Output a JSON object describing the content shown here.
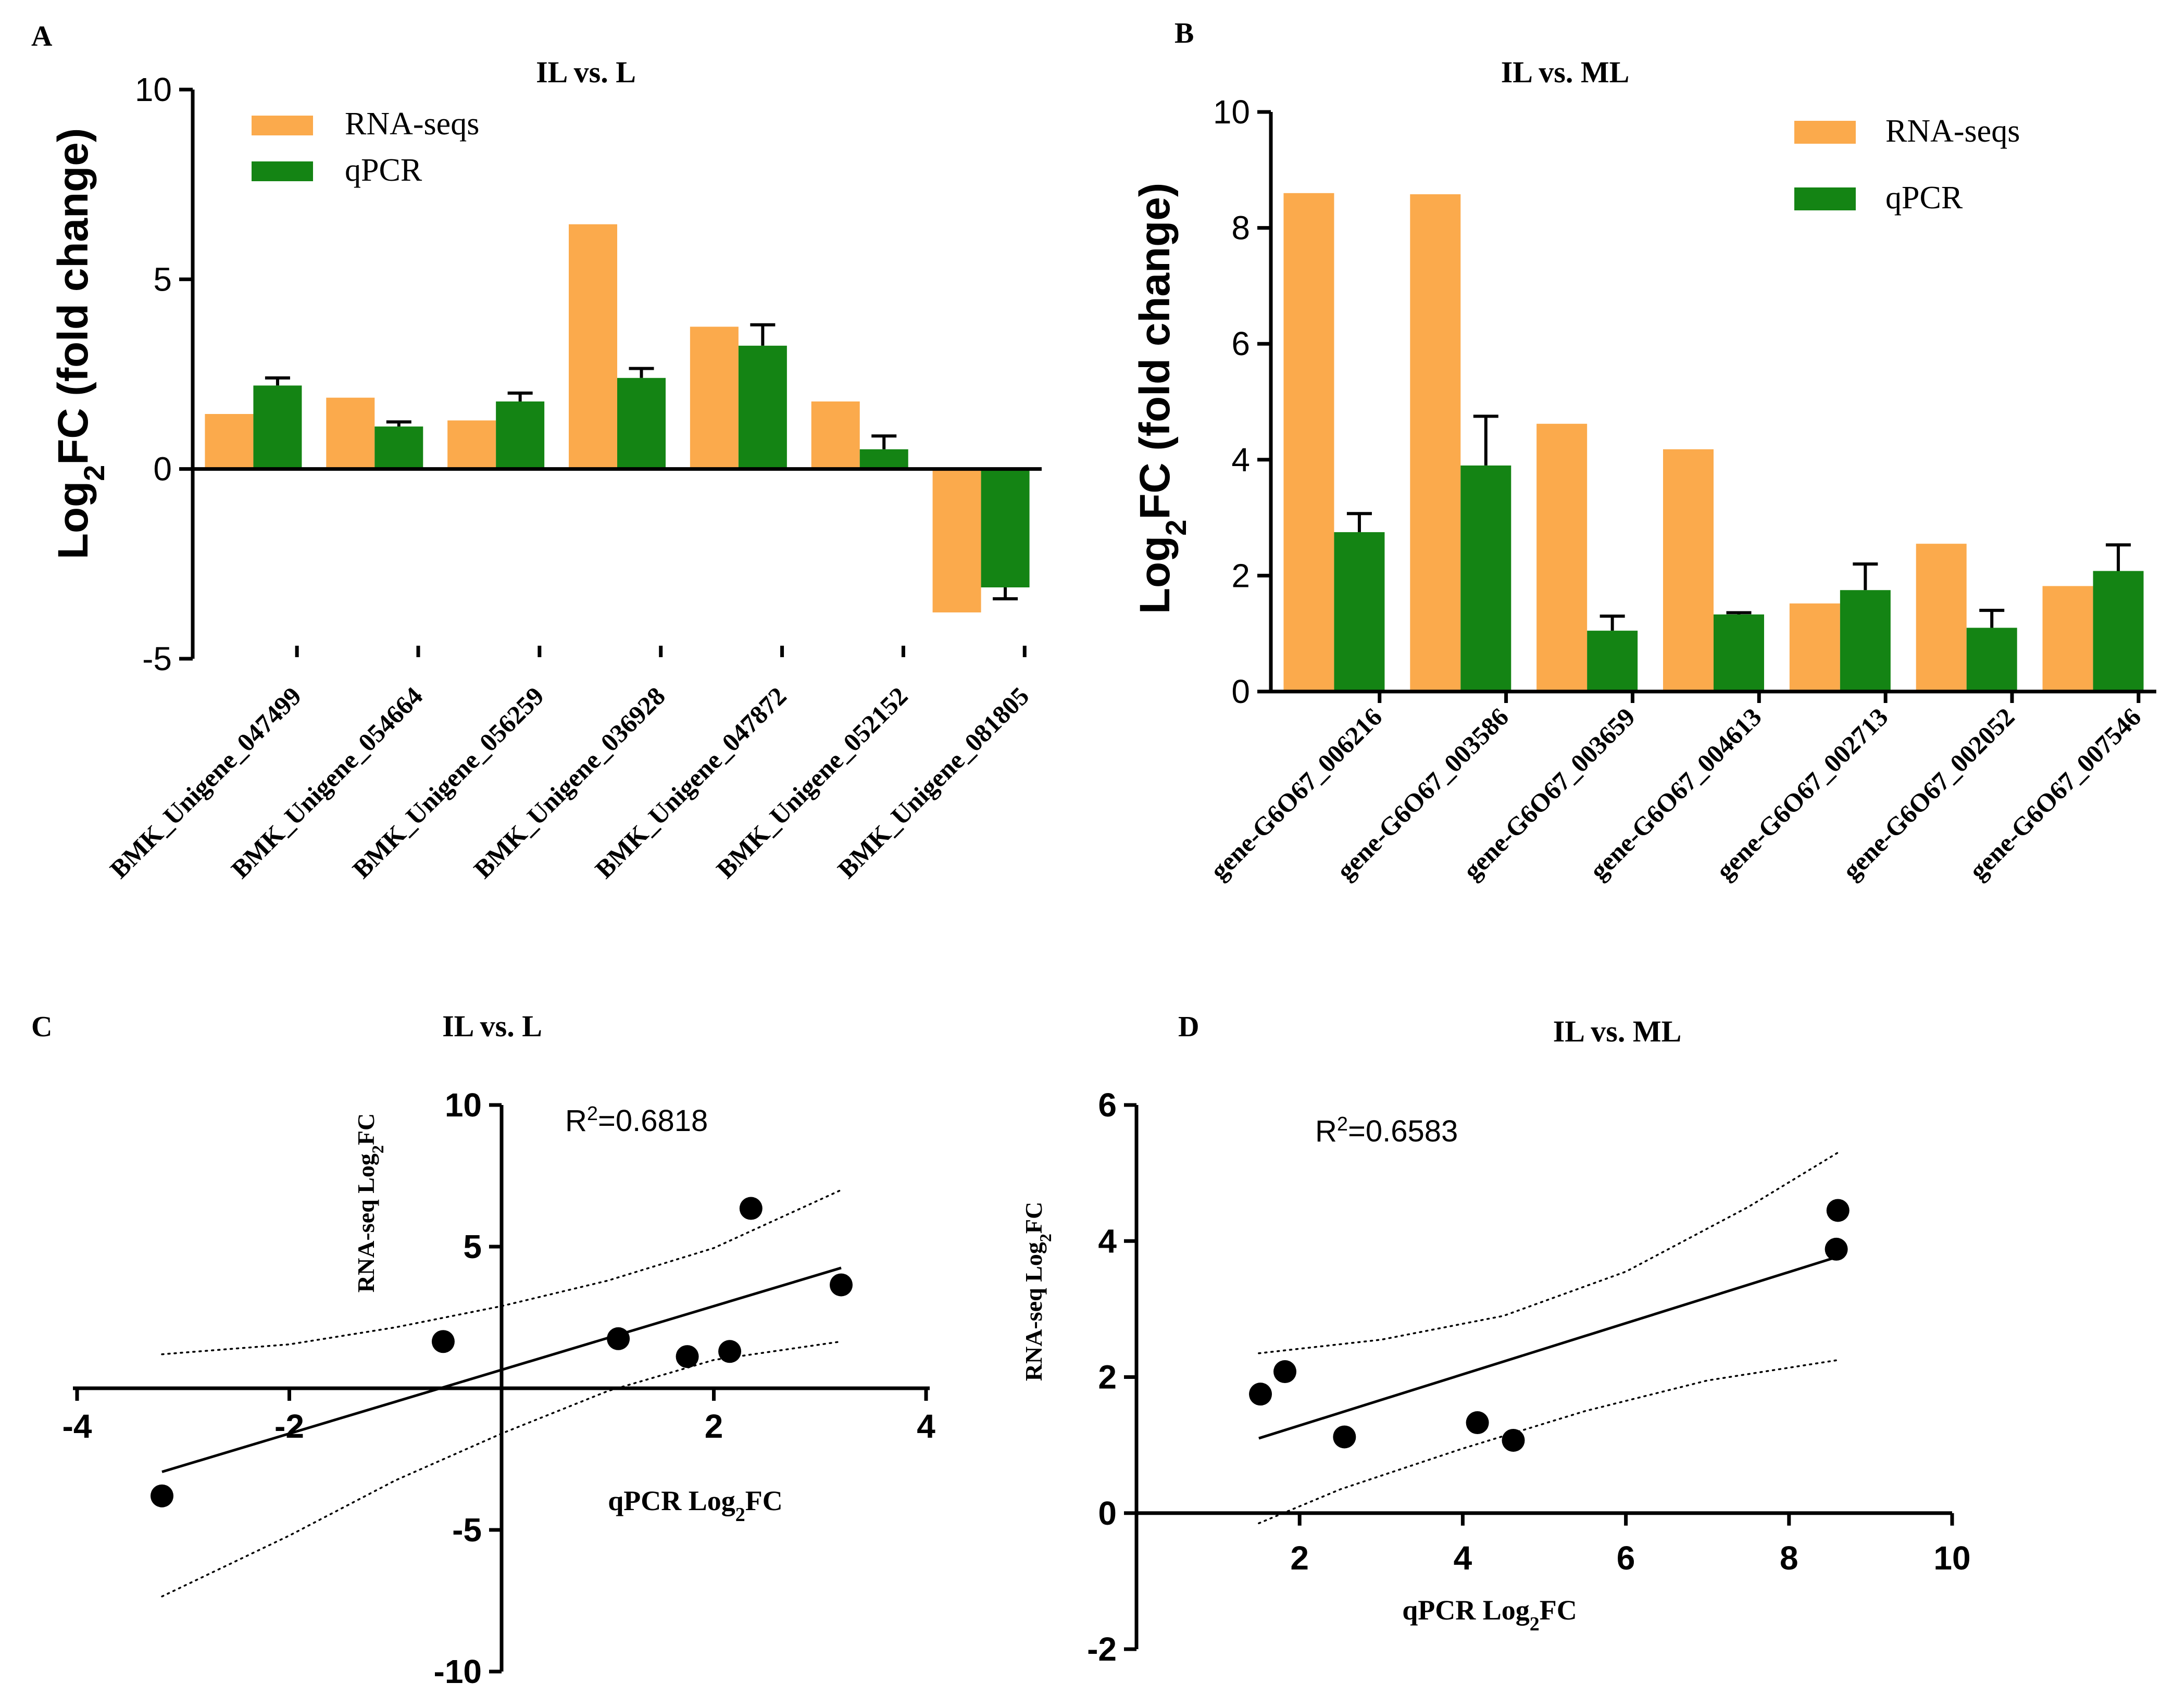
{
  "colors": {
    "rna": "#FBAA4C",
    "qpcr": "#148414",
    "axis": "#000000",
    "point": "#000000"
  },
  "legend": {
    "rna": "RNA-seqs",
    "qpcr": "qPCR"
  },
  "chart_data": [
    {
      "panel": "A",
      "type": "bar",
      "title": "IL vs. L",
      "ylabel_main": "Log",
      "ylabel_sub": "2",
      "ylabel_tail": "FC (fold change)",
      "ylim": [
        -5,
        10
      ],
      "yticks": [
        -5,
        0,
        5,
        10
      ],
      "ytick_labels": [
        "-5",
        "0",
        "5",
        "10"
      ],
      "categories": [
        "BMK_Unigene_047499",
        "BMK_Unigene_054664",
        "BMK_Unigene_056259",
        "BMK_Unigene_036928",
        "BMK_Unigene_047872",
        "BMK_Unigene_052152",
        "BMK_Unigene_081805"
      ],
      "series": [
        {
          "name": "RNA-seqs",
          "values": [
            1.45,
            1.88,
            1.28,
            6.45,
            3.75,
            1.78,
            -3.78
          ]
        },
        {
          "name": "qPCR",
          "values": [
            2.2,
            1.12,
            1.78,
            2.4,
            3.25,
            0.52,
            -3.12
          ],
          "errors": [
            0.2,
            0.12,
            0.22,
            0.25,
            0.55,
            0.35,
            0.3
          ]
        }
      ]
    },
    {
      "panel": "B",
      "type": "bar",
      "title": "IL vs. ML",
      "ylabel_main": "Log",
      "ylabel_sub": "2",
      "ylabel_tail": "FC (fold change)",
      "ylim": [
        0,
        10
      ],
      "yticks": [
        0,
        2,
        4,
        6,
        8,
        10
      ],
      "ytick_labels": [
        "0",
        "2",
        "4",
        "6",
        "8",
        "10"
      ],
      "categories": [
        "gene-G6O67_006216",
        "gene-G6O67_003586",
        "gene-G6O67_003659",
        "gene-G6O67_004613",
        "gene-G6O67_002713",
        "gene-G6O67_002052",
        "gene-G6O67_007546"
      ],
      "series": [
        {
          "name": "RNA-seqs",
          "values": [
            8.6,
            8.58,
            4.62,
            4.18,
            1.52,
            2.55,
            1.82
          ]
        },
        {
          "name": "qPCR",
          "values": [
            2.75,
            3.9,
            1.05,
            1.33,
            1.75,
            1.1,
            2.08
          ],
          "errors": [
            0.32,
            0.85,
            0.25,
            0.03,
            0.45,
            0.3,
            0.45
          ]
        }
      ]
    },
    {
      "panel": "C",
      "type": "scatter",
      "title": "IL vs. L",
      "r2_label": "R",
      "r2_sup": "2",
      "r2_value": "=0.6818",
      "xlabel": "qPCR Log",
      "xlabel_sub": "2",
      "xlabel_tail": "FC",
      "ylabel": "RNA-seq Log",
      "ylabel_sub": "2",
      "ylabel_tail": "FC",
      "xlim": [
        -4,
        4
      ],
      "ylim": [
        -10,
        10
      ],
      "xticks": [
        -4,
        -2,
        2,
        4
      ],
      "xtick_labels": [
        "-4",
        "-2",
        "2",
        "4"
      ],
      "yticks": [
        -10,
        -5,
        5,
        10
      ],
      "ytick_labels": [
        "-10",
        "-5",
        "5",
        "10"
      ],
      "points": [
        [
          -3.2,
          -3.8
        ],
        [
          -0.55,
          1.65
        ],
        [
          1.1,
          1.75
        ],
        [
          1.75,
          1.12
        ],
        [
          2.15,
          1.3
        ],
        [
          2.35,
          6.35
        ],
        [
          3.2,
          3.65
        ]
      ],
      "fit": [
        [
          -3.2,
          -2.95
        ],
        [
          3.2,
          4.25
        ]
      ],
      "ci_upper": [
        [
          -3.2,
          1.2
        ],
        [
          -2,
          1.55
        ],
        [
          -1,
          2.15
        ],
        [
          0,
          2.9
        ],
        [
          1,
          3.8
        ],
        [
          2,
          4.95
        ],
        [
          3.2,
          7.0
        ]
      ],
      "ci_lower": [
        [
          -3.2,
          -7.35
        ],
        [
          -2,
          -5.2
        ],
        [
          -1,
          -3.25
        ],
        [
          0,
          -1.6
        ],
        [
          1,
          -0.1
        ],
        [
          2,
          1.0
        ],
        [
          3.2,
          1.65
        ]
      ]
    },
    {
      "panel": "D",
      "type": "scatter",
      "title": "IL vs. ML",
      "r2_label": "R",
      "r2_sup": "2",
      "r2_value": "=0.6583",
      "xlabel": "qPCR Log",
      "xlabel_sub": "2",
      "xlabel_tail": "FC",
      "ylabel": "RNA-seq Log",
      "ylabel_sub": "2",
      "ylabel_tail": "FC",
      "xlim": [
        0,
        10
      ],
      "ylim": [
        -2,
        6
      ],
      "xticks": [
        2,
        4,
        6,
        8,
        10
      ],
      "xtick_labels": [
        "2",
        "4",
        "6",
        "8",
        "10"
      ],
      "yticks": [
        -2,
        0,
        2,
        4,
        6
      ],
      "ytick_labels": [
        "-2",
        "0",
        "2",
        "4",
        "6"
      ],
      "points": [
        [
          1.52,
          1.75
        ],
        [
          1.82,
          2.08
        ],
        [
          2.55,
          1.12
        ],
        [
          4.18,
          1.33
        ],
        [
          4.62,
          1.07
        ],
        [
          8.58,
          3.88
        ],
        [
          8.6,
          4.45
        ]
      ],
      "fit": [
        [
          1.5,
          1.1
        ],
        [
          8.6,
          3.77
        ]
      ],
      "ci_upper": [
        [
          1.5,
          2.35
        ],
        [
          3,
          2.55
        ],
        [
          4.5,
          2.9
        ],
        [
          6,
          3.55
        ],
        [
          7.5,
          4.5
        ],
        [
          8.6,
          5.3
        ]
      ],
      "ci_lower": [
        [
          1.5,
          -0.15
        ],
        [
          2.5,
          0.35
        ],
        [
          4,
          0.95
        ],
        [
          5.5,
          1.5
        ],
        [
          7,
          1.95
        ],
        [
          8.6,
          2.25
        ]
      ]
    }
  ]
}
